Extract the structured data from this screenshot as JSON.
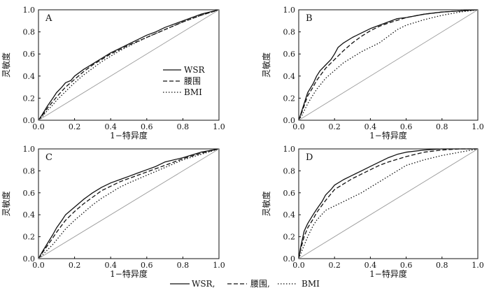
{
  "figure_legend": {
    "entries": [
      {
        "label": "WSR,",
        "style": "solid"
      },
      {
        "label": "腰围,",
        "style": "dashed"
      },
      {
        "label": "BMI",
        "style": "dotted"
      }
    ]
  },
  "chart_data": [
    {
      "type": "line",
      "panel_label": "A",
      "xlabel": "1−特异度",
      "ylabel": "灵敏度",
      "xlim": [
        0,
        1
      ],
      "ylim": [
        0,
        1
      ],
      "xticks": [
        "0.0",
        "0.2",
        "0.4",
        "0.6",
        "0.8",
        "1.0"
      ],
      "yticks": [
        "0.0",
        "0.2",
        "0.4",
        "0.6",
        "0.8",
        "1.0"
      ],
      "legend": {
        "placement": "center",
        "entries": [
          "WSR",
          "腰围",
          "BMI"
        ]
      },
      "series": [
        {
          "name": "WSR",
          "style": "solid",
          "x": [
            0,
            0.02,
            0.05,
            0.08,
            0.1,
            0.13,
            0.15,
            0.18,
            0.2,
            0.25,
            0.3,
            0.35,
            0.4,
            0.45,
            0.5,
            0.55,
            0.6,
            0.65,
            0.7,
            0.8,
            0.9,
            1.0
          ],
          "y": [
            0,
            0.05,
            0.13,
            0.2,
            0.25,
            0.3,
            0.34,
            0.36,
            0.4,
            0.46,
            0.51,
            0.56,
            0.61,
            0.65,
            0.69,
            0.73,
            0.77,
            0.8,
            0.84,
            0.9,
            0.96,
            1.0
          ]
        },
        {
          "name": "腰围",
          "style": "dashed",
          "x": [
            0,
            0.02,
            0.05,
            0.08,
            0.1,
            0.15,
            0.2,
            0.25,
            0.3,
            0.35,
            0.4,
            0.45,
            0.5,
            0.6,
            0.7,
            0.8,
            0.9,
            1.0
          ],
          "y": [
            0,
            0.04,
            0.11,
            0.17,
            0.21,
            0.3,
            0.37,
            0.44,
            0.5,
            0.55,
            0.6,
            0.64,
            0.68,
            0.75,
            0.82,
            0.89,
            0.95,
            1.0
          ]
        },
        {
          "name": "BMI",
          "style": "dotted",
          "x": [
            0,
            0.02,
            0.05,
            0.08,
            0.1,
            0.15,
            0.2,
            0.25,
            0.3,
            0.35,
            0.4,
            0.45,
            0.5,
            0.6,
            0.7,
            0.8,
            0.9,
            1.0
          ],
          "y": [
            0,
            0.03,
            0.09,
            0.14,
            0.18,
            0.26,
            0.34,
            0.41,
            0.47,
            0.53,
            0.58,
            0.63,
            0.67,
            0.75,
            0.82,
            0.89,
            0.95,
            1.0
          ]
        },
        {
          "name": "reference",
          "style": "reference",
          "x": [
            0,
            1
          ],
          "y": [
            0,
            1
          ]
        }
      ]
    },
    {
      "type": "line",
      "panel_label": "B",
      "xlabel": "1−特异度",
      "ylabel": "灵敏度",
      "xlim": [
        0,
        1
      ],
      "ylim": [
        0,
        1
      ],
      "xticks": [
        "0.0",
        "0.2",
        "0.4",
        "0.6",
        "0.8",
        "1.0"
      ],
      "yticks": [
        "0.0",
        "0.2",
        "0.4",
        "0.6",
        "0.8",
        "1.0"
      ],
      "series": [
        {
          "name": "WSR",
          "style": "solid",
          "x": [
            0,
            0.01,
            0.03,
            0.05,
            0.08,
            0.1,
            0.12,
            0.15,
            0.18,
            0.2,
            0.22,
            0.25,
            0.3,
            0.35,
            0.4,
            0.45,
            0.5,
            0.55,
            0.6,
            0.7,
            0.8,
            0.9,
            1.0
          ],
          "y": [
            0,
            0.05,
            0.15,
            0.25,
            0.33,
            0.4,
            0.45,
            0.5,
            0.55,
            0.6,
            0.66,
            0.7,
            0.75,
            0.79,
            0.83,
            0.86,
            0.89,
            0.92,
            0.93,
            0.96,
            0.98,
            0.99,
            1.0
          ]
        },
        {
          "name": "腰围",
          "style": "dashed",
          "x": [
            0,
            0.01,
            0.03,
            0.05,
            0.08,
            0.1,
            0.15,
            0.2,
            0.25,
            0.3,
            0.35,
            0.4,
            0.45,
            0.5,
            0.6,
            0.7,
            0.8,
            0.9,
            1.0
          ],
          "y": [
            0,
            0.04,
            0.13,
            0.22,
            0.3,
            0.36,
            0.47,
            0.55,
            0.63,
            0.7,
            0.76,
            0.81,
            0.85,
            0.88,
            0.93,
            0.96,
            0.98,
            0.99,
            1.0
          ]
        },
        {
          "name": "BMI",
          "style": "dotted",
          "x": [
            0,
            0.02,
            0.05,
            0.08,
            0.1,
            0.15,
            0.2,
            0.25,
            0.3,
            0.35,
            0.4,
            0.45,
            0.5,
            0.55,
            0.6,
            0.7,
            0.8,
            0.9,
            1.0
          ],
          "y": [
            0,
            0.05,
            0.15,
            0.23,
            0.28,
            0.38,
            0.45,
            0.52,
            0.57,
            0.62,
            0.66,
            0.7,
            0.76,
            0.82,
            0.86,
            0.91,
            0.95,
            0.98,
            1.0
          ]
        },
        {
          "name": "reference",
          "style": "reference",
          "x": [
            0,
            1
          ],
          "y": [
            0,
            1
          ]
        }
      ]
    },
    {
      "type": "line",
      "panel_label": "C",
      "xlabel": "1−特异度",
      "ylabel": "灵敏度",
      "xlim": [
        0,
        1
      ],
      "ylim": [
        0,
        1
      ],
      "xticks": [
        "0.0",
        "0.2",
        "0.4",
        "0.6",
        "0.8",
        "1.0"
      ],
      "yticks": [
        "0.0",
        "0.2",
        "0.4",
        "0.6",
        "0.8",
        "1.0"
      ],
      "series": [
        {
          "name": "WSR",
          "style": "solid",
          "x": [
            0,
            0.02,
            0.05,
            0.08,
            0.1,
            0.13,
            0.15,
            0.2,
            0.25,
            0.3,
            0.35,
            0.4,
            0.45,
            0.5,
            0.55,
            0.6,
            0.65,
            0.7,
            0.8,
            0.9,
            1.0
          ],
          "y": [
            0,
            0.06,
            0.14,
            0.22,
            0.28,
            0.35,
            0.4,
            0.47,
            0.54,
            0.6,
            0.65,
            0.69,
            0.72,
            0.75,
            0.78,
            0.81,
            0.84,
            0.88,
            0.92,
            0.97,
            1.0
          ]
        },
        {
          "name": "腰围",
          "style": "dashed",
          "x": [
            0,
            0.02,
            0.05,
            0.08,
            0.1,
            0.15,
            0.2,
            0.25,
            0.3,
            0.35,
            0.4,
            0.45,
            0.5,
            0.6,
            0.7,
            0.8,
            0.9,
            1.0
          ],
          "y": [
            0,
            0.05,
            0.12,
            0.19,
            0.24,
            0.35,
            0.43,
            0.5,
            0.56,
            0.62,
            0.66,
            0.7,
            0.73,
            0.79,
            0.85,
            0.91,
            0.96,
            1.0
          ]
        },
        {
          "name": "BMI",
          "style": "dotted",
          "x": [
            0,
            0.02,
            0.05,
            0.08,
            0.1,
            0.15,
            0.2,
            0.25,
            0.3,
            0.35,
            0.4,
            0.45,
            0.5,
            0.6,
            0.7,
            0.8,
            0.9,
            1.0
          ],
          "y": [
            0,
            0.03,
            0.08,
            0.13,
            0.17,
            0.27,
            0.35,
            0.42,
            0.49,
            0.55,
            0.6,
            0.65,
            0.69,
            0.76,
            0.83,
            0.9,
            0.95,
            1.0
          ]
        },
        {
          "name": "reference",
          "style": "reference",
          "x": [
            0,
            1
          ],
          "y": [
            0,
            1
          ]
        }
      ]
    },
    {
      "type": "line",
      "panel_label": "D",
      "xlabel": "1−特异度",
      "ylabel": "灵敏度",
      "xlim": [
        0,
        1
      ],
      "ylim": [
        0,
        1
      ],
      "xticks": [
        "0.0",
        "0.2",
        "0.4",
        "0.6",
        "0.8",
        "1.0"
      ],
      "yticks": [
        "0.0",
        "0.2",
        "0.4",
        "0.6",
        "0.8",
        "1.0"
      ],
      "series": [
        {
          "name": "WSR",
          "style": "solid",
          "x": [
            0,
            0.01,
            0.03,
            0.05,
            0.08,
            0.1,
            0.13,
            0.15,
            0.18,
            0.2,
            0.25,
            0.3,
            0.35,
            0.4,
            0.45,
            0.5,
            0.55,
            0.6,
            0.7,
            0.8,
            0.9,
            1.0
          ],
          "y": [
            0,
            0.1,
            0.25,
            0.32,
            0.4,
            0.45,
            0.52,
            0.58,
            0.63,
            0.67,
            0.72,
            0.76,
            0.8,
            0.84,
            0.88,
            0.92,
            0.95,
            0.97,
            0.99,
            1.0,
            1.0,
            1.0
          ]
        },
        {
          "name": "腰围",
          "style": "dashed",
          "x": [
            0,
            0.01,
            0.03,
            0.05,
            0.08,
            0.1,
            0.15,
            0.2,
            0.25,
            0.3,
            0.35,
            0.4,
            0.45,
            0.5,
            0.6,
            0.7,
            0.8,
            0.9,
            1.0
          ],
          "y": [
            0,
            0.08,
            0.2,
            0.28,
            0.36,
            0.42,
            0.53,
            0.63,
            0.68,
            0.73,
            0.77,
            0.81,
            0.85,
            0.88,
            0.93,
            0.97,
            0.99,
            1.0,
            1.0
          ]
        },
        {
          "name": "BMI",
          "style": "dotted",
          "x": [
            0,
            0.02,
            0.05,
            0.08,
            0.1,
            0.15,
            0.2,
            0.25,
            0.3,
            0.35,
            0.4,
            0.45,
            0.5,
            0.55,
            0.6,
            0.7,
            0.8,
            0.9,
            1.0
          ],
          "y": [
            0,
            0.08,
            0.2,
            0.3,
            0.35,
            0.44,
            0.48,
            0.52,
            0.56,
            0.6,
            0.65,
            0.7,
            0.75,
            0.8,
            0.85,
            0.9,
            0.94,
            0.97,
            1.0
          ]
        },
        {
          "name": "reference",
          "style": "reference",
          "x": [
            0,
            1
          ],
          "y": [
            0,
            1
          ]
        }
      ]
    }
  ]
}
